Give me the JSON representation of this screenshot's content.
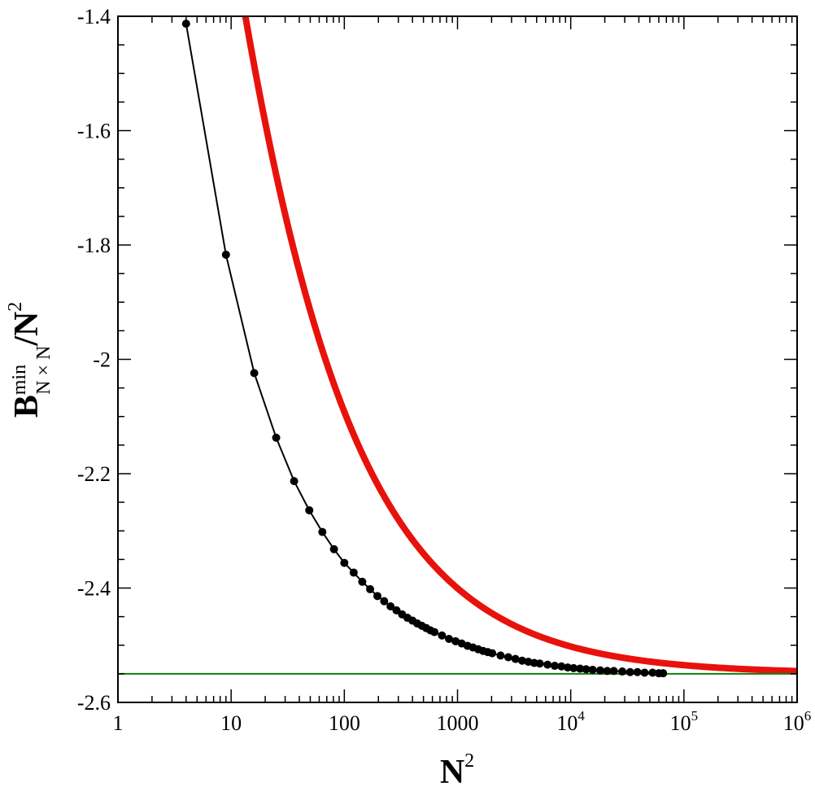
{
  "chart_data": {
    "type": "line",
    "title": "",
    "xlabel": {
      "base": "N",
      "sup": "2"
    },
    "ylabel": {
      "base": "B",
      "sup": "min",
      "sub": "N × N",
      "rest": "/N",
      "rest_sup": "2"
    },
    "x_scale": "log",
    "xlim": [
      1,
      1000000
    ],
    "ylim": [
      -2.6,
      -1.4
    ],
    "grid": false,
    "legend": "none",
    "x_ticks": [
      {
        "value": 1,
        "label": "1",
        "sup": ""
      },
      {
        "value": 10,
        "label": "10",
        "sup": ""
      },
      {
        "value": 100,
        "label": "100",
        "sup": ""
      },
      {
        "value": 1000,
        "label": "1000",
        "sup": ""
      },
      {
        "value": 10000,
        "label": "10",
        "sup": "4"
      },
      {
        "value": 100000,
        "label": "10",
        "sup": "5"
      },
      {
        "value": 1000000,
        "label": "10",
        "sup": "6"
      }
    ],
    "y_ticks": [
      {
        "value": -1.4,
        "label": "-1.4"
      },
      {
        "value": -1.6,
        "label": "-1.6"
      },
      {
        "value": -1.8,
        "label": "-1.8"
      },
      {
        "value": -2.0,
        "label": "-2"
      },
      {
        "value": -2.2,
        "label": "-2.2"
      },
      {
        "value": -2.4,
        "label": "-2.4"
      },
      {
        "value": -2.6,
        "label": "-2.6"
      }
    ],
    "series": [
      {
        "kind": "fit-curve",
        "color": "#e8120c",
        "model": {
          "a": -2.55,
          "b": 4.8,
          "c": 2.18
        },
        "x_range": [
          4.2,
          1000000
        ]
      },
      {
        "kind": "points",
        "color": "#000000",
        "x": [
          4,
          9,
          16,
          25,
          36,
          49,
          64,
          81,
          100,
          121,
          144,
          169,
          196,
          225,
          256,
          289,
          324,
          361,
          400,
          441,
          484,
          529,
          576,
          625,
          729,
          841,
          961,
          1089,
          1225,
          1369,
          1521,
          1681,
          1849,
          2025,
          2401,
          2809,
          3249,
          3721,
          4225,
          4761,
          5329,
          6241,
          7225,
          8281,
          9409,
          10609,
          12100,
          13689,
          15625,
          18225,
          21025,
          24025,
          28561,
          33489,
          38809,
          44944,
          52900,
          60025,
          65536
        ],
        "y": [
          -1.413,
          -1.817,
          -2.024,
          -2.137,
          -2.213,
          -2.264,
          -2.302,
          -2.332,
          -2.356,
          -2.373,
          -2.389,
          -2.402,
          -2.414,
          -2.423,
          -2.432,
          -2.439,
          -2.446,
          -2.452,
          -2.457,
          -2.462,
          -2.466,
          -2.47,
          -2.474,
          -2.477,
          -2.483,
          -2.489,
          -2.493,
          -2.497,
          -2.501,
          -2.504,
          -2.507,
          -2.51,
          -2.512,
          -2.514,
          -2.518,
          -2.521,
          -2.524,
          -2.527,
          -2.529,
          -2.531,
          -2.532,
          -2.534,
          -2.536,
          -2.537,
          -2.539,
          -2.54,
          -2.541,
          -2.542,
          -2.543,
          -2.544,
          -2.545,
          -2.545,
          -2.546,
          -2.547,
          -2.547,
          -2.548,
          -2.548,
          -2.549,
          -2.549
        ]
      },
      {
        "kind": "asymptote",
        "color": "#157a10",
        "y": -2.55
      }
    ]
  }
}
